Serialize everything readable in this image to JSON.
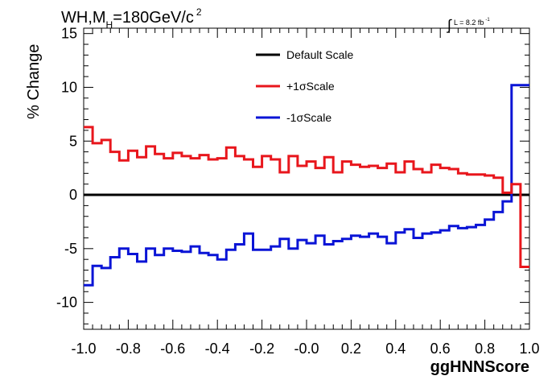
{
  "chart_data": {
    "type": "line",
    "title": {
      "main": "WH,M",
      "subscript": "H",
      "rest": "=180GeV/c",
      "superscript": "2"
    },
    "lumi": {
      "symbol": "∫",
      "text": "L = 8.2 fb",
      "superscript": "-1"
    },
    "xlabel": "ggHNNScore",
    "ylabel": "% Change",
    "xlim": [
      -1.0,
      1.0
    ],
    "ylim": [
      -12.5,
      15.5
    ],
    "x_ticks": [
      "-1.0",
      "-0.8",
      "-0.6",
      "-0.4",
      "-0.2",
      "-0.0",
      "0.2",
      "0.4",
      "0.6",
      "0.8",
      "1.0"
    ],
    "y_ticks": [
      "-10",
      "-5",
      "0",
      "5",
      "10",
      "15"
    ],
    "legend": {
      "placement": "top-center"
    },
    "bin_edges": [
      -1.0,
      -0.96,
      -0.92,
      -0.88,
      -0.84,
      -0.8,
      -0.76,
      -0.72,
      -0.68,
      -0.64,
      -0.6,
      -0.56,
      -0.52,
      -0.48,
      -0.44,
      -0.4,
      -0.36,
      -0.32,
      -0.28,
      -0.24,
      -0.2,
      -0.16,
      -0.12,
      -0.08,
      -0.04,
      0.0,
      0.04,
      0.08,
      0.12,
      0.16,
      0.2,
      0.24,
      0.28,
      0.32,
      0.36,
      0.4,
      0.44,
      0.48,
      0.52,
      0.56,
      0.6,
      0.64,
      0.68,
      0.72,
      0.76,
      0.8,
      0.84,
      0.88,
      0.92,
      0.96,
      1.0
    ],
    "series": [
      {
        "name": "Default Scale",
        "color": "#000000",
        "values": [
          0,
          0,
          0,
          0,
          0,
          0,
          0,
          0,
          0,
          0,
          0,
          0,
          0,
          0,
          0,
          0,
          0,
          0,
          0,
          0,
          0,
          0,
          0,
          0,
          0,
          0,
          0,
          0,
          0,
          0,
          0,
          0,
          0,
          0,
          0,
          0,
          0,
          0,
          0,
          0,
          0,
          0,
          0,
          0,
          0,
          0,
          0,
          0,
          0,
          0
        ]
      },
      {
        "name": "+1σScale",
        "color": "#e8161c",
        "values": [
          6.3,
          4.8,
          5.1,
          4.0,
          3.2,
          4.1,
          3.5,
          4.5,
          3.8,
          3.4,
          3.9,
          3.6,
          3.4,
          3.7,
          3.3,
          3.4,
          4.4,
          3.6,
          3.3,
          2.6,
          3.6,
          3.3,
          2.1,
          3.6,
          2.7,
          3.1,
          2.5,
          3.5,
          2.1,
          3.1,
          2.8,
          2.6,
          2.7,
          2.5,
          2.9,
          2.1,
          3.1,
          2.4,
          2.1,
          2.8,
          2.5,
          2.4,
          2.0,
          1.9,
          1.9,
          1.8,
          1.6,
          0.2,
          1.0,
          -6.7
        ]
      },
      {
        "name": "-1σScale",
        "color": "#0a14d6",
        "values": [
          -8.4,
          -6.6,
          -6.8,
          -5.8,
          -5.0,
          -5.5,
          -6.2,
          -5.0,
          -5.6,
          -5.0,
          -5.2,
          -5.3,
          -4.8,
          -5.4,
          -5.6,
          -6.0,
          -5.1,
          -4.6,
          -3.6,
          -5.1,
          -5.1,
          -4.8,
          -4.1,
          -5.0,
          -4.2,
          -4.5,
          -3.8,
          -4.6,
          -4.3,
          -4.1,
          -3.8,
          -3.9,
          -3.6,
          -3.9,
          -4.5,
          -3.5,
          -3.2,
          -4.0,
          -3.6,
          -3.5,
          -3.3,
          -2.9,
          -3.1,
          -3.0,
          -2.8,
          -2.3,
          -1.6,
          -0.6,
          10.2,
          10.2
        ]
      }
    ]
  }
}
